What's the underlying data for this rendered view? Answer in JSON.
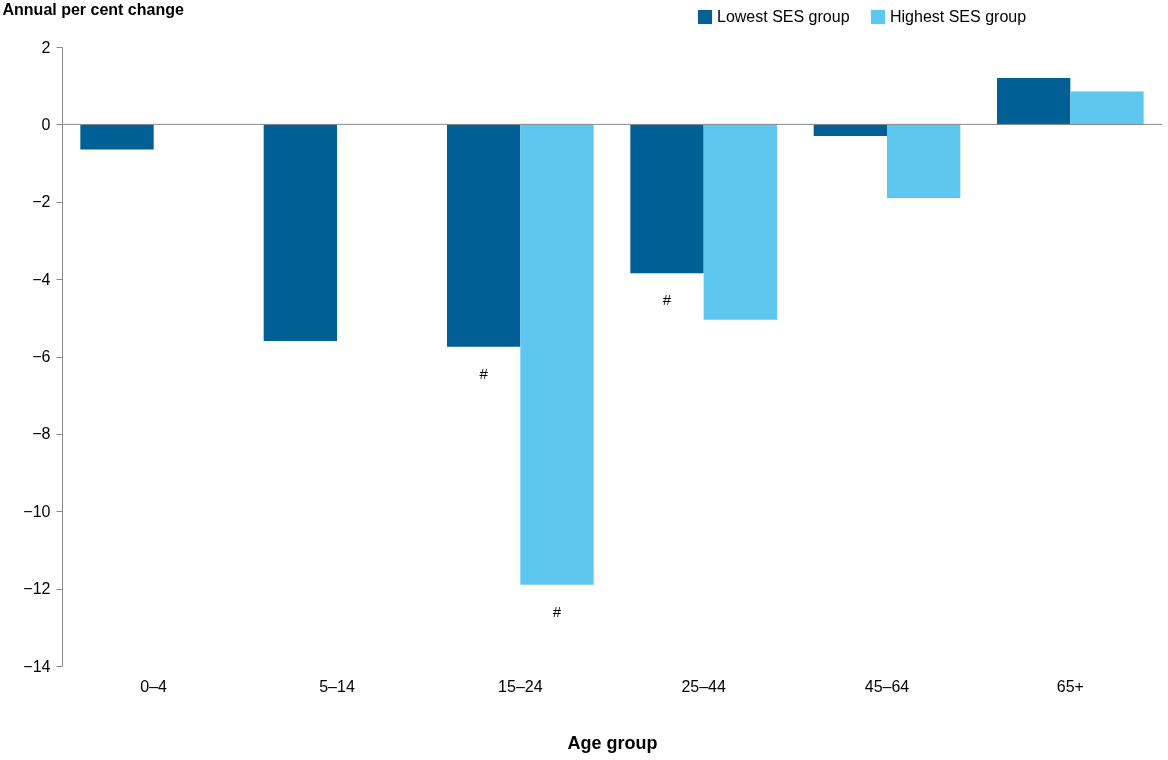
{
  "chart_data": {
    "type": "bar",
    "ylabel": "Annual per cent change",
    "xlabel": "Age group",
    "categories": [
      "0–4",
      "5–14",
      "15–24",
      "25–44",
      "45–64",
      "65+"
    ],
    "series": [
      {
        "name": "Lowest SES group",
        "color": "#005f94",
        "values": [
          -0.65,
          -5.6,
          -5.75,
          -3.85,
          -0.3,
          1.2
        ]
      },
      {
        "name": "Highest SES group",
        "color": "#5ec7f0",
        "values": [
          null,
          null,
          -11.9,
          -5.05,
          -1.9,
          0.85
        ]
      }
    ],
    "ylim": [
      -14,
      2
    ],
    "yticks": [
      -14,
      -12,
      -10,
      -8,
      -6,
      -4,
      -2,
      0,
      2
    ],
    "grid": false,
    "ref_lines": [
      {
        "axis": "y",
        "value": 0,
        "color": "#888888"
      }
    ],
    "legend": "top right",
    "annotations": [
      {
        "text": "#",
        "x": "15–24",
        "y": -5.75
      },
      {
        "text": "#",
        "x": "15–24",
        "y": -11.9
      },
      {
        "text": "#",
        "x": "25–44",
        "y": -3.85
      }
    ]
  }
}
